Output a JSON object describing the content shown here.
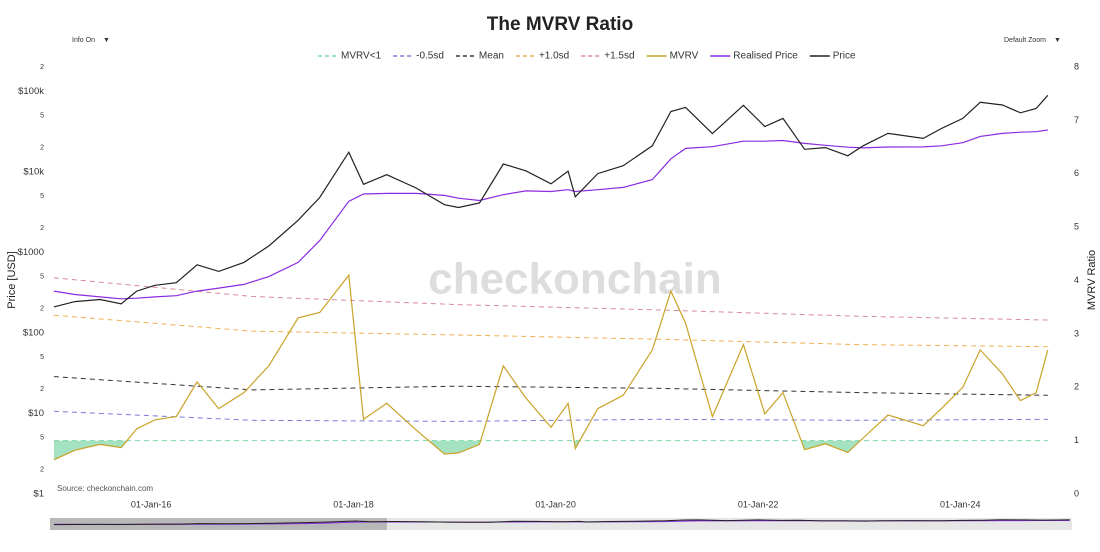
{
  "ui": {
    "info": "Info On",
    "zoom": "Default Zoom",
    "caret": "▼",
    "watermark": "checkonchain",
    "source": "Source: checkonchain.com"
  },
  "chart_data": {
    "type": "line",
    "title": "The MVRV Ratio",
    "y_label": "Price [USD]",
    "y2_label": "MVRV Ratio",
    "yscale": "log",
    "grid": false,
    "xlim": [
      "2015-01-01",
      "2024-11-20"
    ],
    "xticks": [
      {
        "value": "2016-01-01",
        "label": "01-Jan-16"
      },
      {
        "value": "2018-01-01",
        "label": "01-Jan-18"
      },
      {
        "value": "2020-01-01",
        "label": "01-Jan-20"
      },
      {
        "value": "2022-01-01",
        "label": "01-Jan-22"
      },
      {
        "value": "2024-01-01",
        "label": "01-Jan-24"
      }
    ],
    "ylim": [
      1,
      200000
    ],
    "yticks": [
      {
        "value": 1,
        "label": "$1"
      },
      2,
      5,
      {
        "value": 10,
        "label": "$10"
      },
      {
        "value": 20,
        "label": "2"
      },
      {
        "value": 50,
        "label": "5"
      },
      {
        "value": 100,
        "label": "$100"
      },
      {
        "value": 200,
        "label": "2"
      },
      {
        "value": 500,
        "label": "5"
      },
      {
        "value": 1000,
        "label": "$1000"
      },
      {
        "value": 2000,
        "label": "2"
      },
      {
        "value": 5000,
        "label": "5"
      },
      {
        "value": 10000,
        "label": "$10k"
      },
      {
        "value": 20000,
        "label": "2"
      },
      {
        "value": 50000,
        "label": "5"
      },
      {
        "value": 100000,
        "label": "$100k"
      },
      {
        "value": 200000,
        "label": "2"
      }
    ],
    "y2lim": [
      0,
      8
    ],
    "y2ticks": [
      0,
      1,
      2,
      3,
      4,
      5,
      6,
      7,
      8
    ],
    "x": [
      "2015-01-15",
      "2015-04-01",
      "2015-07-01",
      "2015-09-15",
      "2015-11-10",
      "2016-01-15",
      "2016-04-01",
      "2016-06-15",
      "2016-09-01",
      "2016-12-01",
      "2017-03-01",
      "2017-06-15",
      "2017-09-01",
      "2017-12-15",
      "2018-02-06",
      "2018-05-01",
      "2018-08-15",
      "2018-11-25",
      "2019-01-15",
      "2019-04-01",
      "2019-06-26",
      "2019-09-15",
      "2019-12-15",
      "2020-02-15",
      "2020-03-12",
      "2020-06-01",
      "2020-09-01",
      "2020-12-15",
      "2021-02-20",
      "2021-04-14",
      "2021-07-20",
      "2021-11-09",
      "2022-01-25",
      "2022-04-01",
      "2022-06-18",
      "2022-09-01",
      "2022-11-21",
      "2023-01-15",
      "2023-04-15",
      "2023-08-20",
      "2023-10-25",
      "2024-01-10",
      "2024-03-13",
      "2024-06-01",
      "2024-08-05",
      "2024-10-01",
      "2024-11-12"
    ],
    "series": [
      {
        "name": "MVRV<1",
        "color": "#7fd6a8",
        "axis": "y2",
        "dash": true,
        "x": [
          "2015-01-15",
          "2024-11-12"
        ],
        "values": [
          1,
          1
        ]
      },
      {
        "name": "-0.5sd",
        "color": "#7b7bdc",
        "axis": "y2",
        "dash": true,
        "x": [
          "2015-01-15",
          "2017-01-01",
          "2019-01-01",
          "2021-01-01",
          "2023-01-01",
          "2024-11-12"
        ],
        "values": [
          1.55,
          1.38,
          1.36,
          1.4,
          1.38,
          1.4
        ]
      },
      {
        "name": "Mean",
        "color": "#333333",
        "axis": "y2",
        "dash": true,
        "x": [
          "2015-01-15",
          "2017-01-01",
          "2019-01-01",
          "2021-01-01",
          "2023-01-01",
          "2024-11-12"
        ],
        "values": [
          2.2,
          1.95,
          2.02,
          1.98,
          1.9,
          1.85
        ]
      },
      {
        "name": "+1.0sd",
        "color": "#f0b050",
        "axis": "y2",
        "dash": true,
        "x": [
          "2015-01-15",
          "2017-01-01",
          "2019-01-01",
          "2021-01-01",
          "2023-01-01",
          "2024-11-12"
        ],
        "values": [
          3.35,
          3.05,
          2.98,
          2.9,
          2.8,
          2.76
        ]
      },
      {
        "name": "+1.5sd",
        "color": "#d88aa0",
        "axis": "y2",
        "dash": true,
        "x": [
          "2015-01-15",
          "2017-01-01",
          "2019-01-01",
          "2021-01-01",
          "2023-01-01",
          "2024-11-12"
        ],
        "values": [
          4.05,
          3.7,
          3.55,
          3.45,
          3.33,
          3.26
        ]
      },
      {
        "name": "MVRV",
        "color": "#c9a227",
        "axis": "y2",
        "dash": false,
        "values": [
          0.64,
          0.82,
          0.93,
          0.87,
          1.22,
          1.39,
          1.45,
          2.1,
          1.6,
          1.9,
          2.4,
          3.3,
          3.4,
          4.1,
          1.4,
          1.7,
          1.2,
          0.75,
          0.77,
          0.93,
          2.4,
          1.8,
          1.25,
          1.7,
          0.85,
          1.6,
          1.85,
          2.7,
          3.8,
          3.2,
          1.45,
          2.8,
          1.5,
          1.9,
          0.83,
          0.94,
          0.78,
          1.05,
          1.48,
          1.28,
          1.6,
          2.0,
          2.7,
          2.25,
          1.75,
          1.9,
          2.7
        ]
      },
      {
        "name": "Realised Price",
        "color": "#8a2be2",
        "axis": "y",
        "dash": false,
        "values": [
          330,
          300,
          280,
          265,
          270,
          280,
          290,
          330,
          360,
          400,
          500,
          750,
          1400,
          4300,
          5300,
          5400,
          5400,
          5100,
          4700,
          4400,
          5200,
          5800,
          5700,
          6000,
          5700,
          6000,
          6400,
          8000,
          14500,
          19500,
          20500,
          24000,
          24000,
          24500,
          22500,
          21300,
          20200,
          19800,
          20300,
          20400,
          21000,
          23000,
          27500,
          30000,
          31000,
          31500,
          33000
        ]
      },
      {
        "name": "Price",
        "color": "#222222",
        "axis": "y",
        "dash": false,
        "values": [
          210,
          245,
          260,
          230,
          330,
          390,
          420,
          700,
          580,
          750,
          1200,
          2500,
          4800,
          17500,
          7000,
          9200,
          6300,
          3900,
          3600,
          4100,
          12500,
          10300,
          7100,
          10200,
          4900,
          9500,
          11900,
          21000,
          56000,
          63000,
          29800,
          67000,
          36500,
          46000,
          19000,
          20000,
          15800,
          21000,
          30000,
          26000,
          34500,
          46000,
          73000,
          67500,
          54000,
          61000,
          89000
        ]
      }
    ]
  }
}
